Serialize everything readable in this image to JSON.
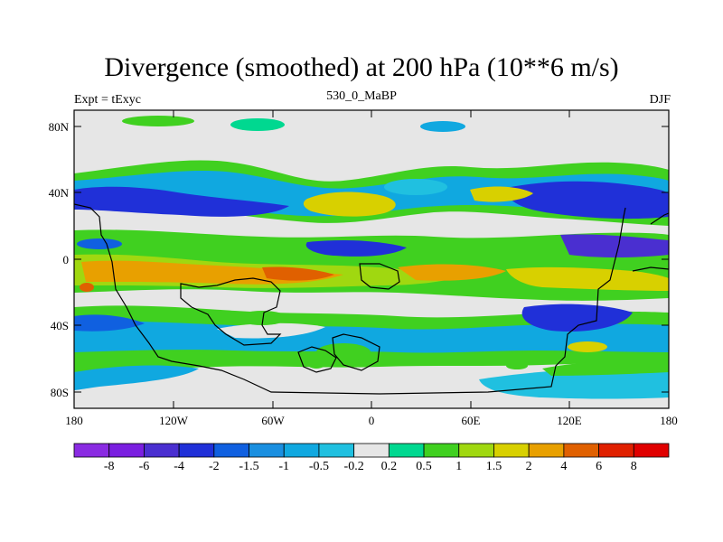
{
  "title": "Divergence (smoothed) at 200 hPa (10**6 m/s)",
  "subtitle_left": "Expt = tExyc",
  "subtitle_center": "530_0_MaBP",
  "subtitle_right": "DJF",
  "y_ticks": [
    "80N",
    "40N",
    "0",
    "40S",
    "80S"
  ],
  "x_ticks": [
    "180",
    "120W",
    "60W",
    "0",
    "60E",
    "120E",
    "180"
  ],
  "colorbar": {
    "labels": [
      "-8",
      "-6",
      "-4",
      "-2",
      "-1.5",
      "-1",
      "-0.5",
      "-0.2",
      "0.2",
      "0.5",
      "1",
      "1.5",
      "2",
      "4",
      "6",
      "8"
    ],
    "colors": [
      "#8a2be2",
      "#7a1fe0",
      "#4a2fd0",
      "#2030d8",
      "#1060e0",
      "#1a8fe0",
      "#10a8e0",
      "#20c0e0",
      "#e6e6e6",
      "#00d890",
      "#40d020",
      "#a0d810",
      "#d8d000",
      "#e8a000",
      "#e06000",
      "#e02000",
      "#e00000"
    ]
  },
  "map": {
    "background_color": "#e6e6e6",
    "lon_range": [
      -180,
      180
    ],
    "lat_range": [
      -90,
      90
    ]
  }
}
